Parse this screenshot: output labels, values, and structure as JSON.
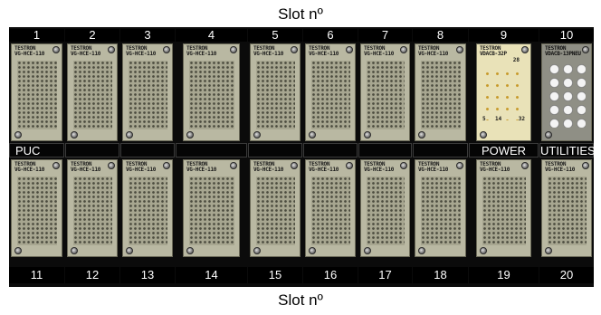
{
  "captions": {
    "top": "Slot nº",
    "bottom": "Slot nº"
  },
  "slots_top": [
    {
      "number": "1",
      "label": "PUC",
      "module": "VG-HCE-110",
      "type": "standard"
    },
    {
      "number": "2",
      "label": "",
      "module": "VG-HCE-110",
      "type": "standard"
    },
    {
      "number": "3",
      "label": "",
      "module": "VG-HCE-110",
      "type": "standard"
    },
    {
      "number": "4",
      "label": "",
      "module": "VG-HCE-110",
      "type": "standard"
    },
    {
      "number": "5",
      "label": "",
      "module": "VG-HCE-110",
      "type": "standard"
    },
    {
      "number": "6",
      "label": "",
      "module": "VG-HCE-110",
      "type": "standard"
    },
    {
      "number": "7",
      "label": "",
      "module": "VG-HCE-110",
      "type": "standard"
    },
    {
      "number": "8",
      "label": "",
      "module": "VG-HCE-110",
      "type": "standard"
    },
    {
      "number": "9",
      "label": "POWER",
      "module": "VDACB-32P",
      "type": "power"
    },
    {
      "number": "10",
      "label": "UTILITIES",
      "module": "VDACB-13PNEU",
      "type": "utilities"
    }
  ],
  "slots_bottom": [
    {
      "number": "11",
      "module": "VG-HCE-110"
    },
    {
      "number": "12",
      "module": "VG-HCE-110"
    },
    {
      "number": "13",
      "module": "VG-HCE-110"
    },
    {
      "number": "14",
      "module": "VG-HCE-110"
    },
    {
      "number": "15",
      "module": "VG-HCE-110"
    },
    {
      "number": "16",
      "module": "VG-HCE-110"
    },
    {
      "number": "17",
      "module": "VG-HCE-110"
    },
    {
      "number": "18",
      "module": "VG-HCE-110"
    },
    {
      "number": "19",
      "module": "VG-HCE-110"
    },
    {
      "number": "20",
      "module": "VG-HCE-110"
    }
  ],
  "brand": "TESTRON",
  "power_labels": [
    "28",
    "5",
    "14",
    "32"
  ],
  "colors": {
    "rack": "#0b0b0b",
    "module": "#b9b8a2",
    "power_module": "#e9e2b8",
    "utilities_module": "#8f8f85"
  }
}
